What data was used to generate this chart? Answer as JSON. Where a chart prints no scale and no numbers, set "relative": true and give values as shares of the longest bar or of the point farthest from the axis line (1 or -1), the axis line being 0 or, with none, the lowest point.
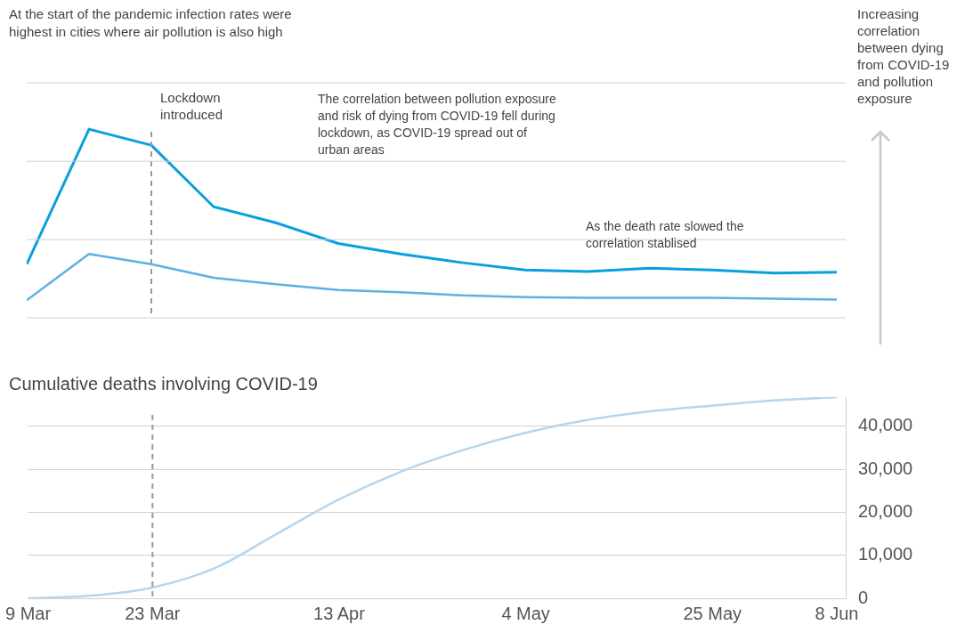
{
  "chart_data": [
    {
      "type": "line",
      "title": "At the start of the pandemic infection rates were highest in cities where air pollution is also high",
      "ylabel": "Increasing correlation between dying from COVID-19 and pollution exposure",
      "relative": true,
      "x": [
        "--03-09",
        "--03-16",
        "--03-23",
        "--03-30",
        "--04-06",
        "--04-13",
        "--04-20",
        "--04-27",
        "--05-04",
        "--05-11",
        "--05-18",
        "--05-25",
        "--06-01",
        "--06-08"
      ],
      "xlim": [
        "--03-09",
        "--06-09"
      ],
      "series": [
        {
          "color": "#0a9fde",
          "values": [
            0.284,
            1.0,
            0.915,
            0.589,
            0.504,
            0.394,
            0.339,
            0.292,
            0.254,
            0.246,
            0.263,
            0.254,
            0.237,
            0.242
          ]
        },
        {
          "color": "#5cb0e3",
          "values": [
            0.093,
            0.339,
            0.284,
            0.212,
            0.178,
            0.148,
            0.136,
            0.119,
            0.11,
            0.106,
            0.106,
            0.106,
            0.102,
            0.097
          ]
        }
      ],
      "ref_lines": [
        {
          "axis": "x",
          "value": "--03-23",
          "label": "Lockdown introduced",
          "color": "#999999",
          "line_style": "dashed"
        },
        {
          "axis": "y",
          "value": 0,
          "color": "#d0d0d0"
        },
        {
          "axis": "y",
          "value": 0.415,
          "color": "#d0d0d0"
        },
        {
          "axis": "y",
          "value": 0.83,
          "color": "#d0d0d0"
        },
        {
          "axis": "y",
          "value": 1.246,
          "color": "#d0d0d0"
        }
      ],
      "annotations": [
        "The correlation between pollution exposure and risk of dying from COVID-19 fell during lockdown, as COVID-19 spread out of urban areas",
        "As the death rate slowed the correlation stablised"
      ],
      "marker": "none"
    },
    {
      "type": "line",
      "title": "Cumulative deaths involving COVID-19",
      "x": [
        "--03-09",
        "--03-16",
        "--03-23",
        "--03-30",
        "--04-06",
        "--04-13",
        "--04-20",
        "--04-27",
        "--05-04",
        "--05-11",
        "--05-18",
        "--05-25",
        "--06-01",
        "--06-08"
      ],
      "xlim": [
        "--03-09",
        "--06-09"
      ],
      "xticks": [
        {
          "value": "--03-09",
          "label": "9 Mar"
        },
        {
          "value": "--03-23",
          "label": "23 Mar"
        },
        {
          "value": "--04-13",
          "label": "13 Apr"
        },
        {
          "value": "--05-04",
          "label": "4 May"
        },
        {
          "value": "--05-25",
          "label": "25 May"
        },
        {
          "value": "--06-08",
          "label": "8 Jun"
        }
      ],
      "ylim": [
        0,
        46800
      ],
      "yticks": [
        {
          "value": 0,
          "label": "0"
        },
        {
          "value": 10000,
          "label": "10,000"
        },
        {
          "value": 20000,
          "label": "20,000"
        },
        {
          "value": 30000,
          "label": "30,000"
        },
        {
          "value": 40000,
          "label": "40,000"
        }
      ],
      "series": [
        {
          "color": "#b5d6ef",
          "values": [
            0,
            600,
            2500,
            7000,
            15000,
            23000,
            29500,
            34500,
            38500,
            41500,
            43500,
            44800,
            46000,
            46800
          ]
        }
      ],
      "ref_lines": [
        {
          "axis": "x",
          "value": "--03-23",
          "color": "#999999",
          "line_style": "dashed"
        }
      ],
      "grid": "y",
      "marker": "none"
    }
  ]
}
